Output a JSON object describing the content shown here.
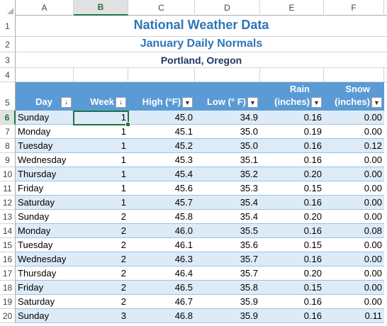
{
  "columns": [
    "A",
    "B",
    "C",
    "D",
    "E",
    "F"
  ],
  "selected_column": "B",
  "rows": [
    "1",
    "2",
    "3",
    "4",
    "5",
    "6",
    "7",
    "8",
    "9",
    "10",
    "11",
    "12",
    "13",
    "14",
    "15",
    "16",
    "17",
    "18",
    "19",
    "20"
  ],
  "selected_row": "6",
  "titles": {
    "main": "National Weather Data",
    "sub": "January Daily Normals",
    "location": "Portland, Oregon"
  },
  "table": {
    "headers": [
      {
        "line1": "",
        "line2": "Day",
        "filter": "sorted"
      },
      {
        "line1": "",
        "line2": "Week",
        "filter": "sorted"
      },
      {
        "line1": "",
        "line2": "High (°F)",
        "filter": "dropdown"
      },
      {
        "line1": "",
        "line2": "Low (° F)",
        "filter": "dropdown"
      },
      {
        "line1": "Rain",
        "line2": "(inches)",
        "filter": "dropdown"
      },
      {
        "line1": "Snow",
        "line2": "(inches)",
        "filter": "dropdown"
      }
    ],
    "rows": [
      [
        "Sunday",
        "1",
        "45.0",
        "34.9",
        "0.16",
        "0.00"
      ],
      [
        "Monday",
        "1",
        "45.1",
        "35.0",
        "0.19",
        "0.00"
      ],
      [
        "Tuesday",
        "1",
        "45.2",
        "35.0",
        "0.16",
        "0.12"
      ],
      [
        "Wednesday",
        "1",
        "45.3",
        "35.1",
        "0.16",
        "0.00"
      ],
      [
        "Thursday",
        "1",
        "45.4",
        "35.2",
        "0.20",
        "0.00"
      ],
      [
        "Friday",
        "1",
        "45.6",
        "35.3",
        "0.15",
        "0.00"
      ],
      [
        "Saturday",
        "1",
        "45.7",
        "35.4",
        "0.16",
        "0.00"
      ],
      [
        "Sunday",
        "2",
        "45.8",
        "35.4",
        "0.20",
        "0.00"
      ],
      [
        "Monday",
        "2",
        "46.0",
        "35.5",
        "0.16",
        "0.08"
      ],
      [
        "Tuesday",
        "2",
        "46.1",
        "35.6",
        "0.15",
        "0.00"
      ],
      [
        "Wednesday",
        "2",
        "46.3",
        "35.7",
        "0.16",
        "0.00"
      ],
      [
        "Thursday",
        "2",
        "46.4",
        "35.7",
        "0.20",
        "0.00"
      ],
      [
        "Friday",
        "2",
        "46.5",
        "35.8",
        "0.15",
        "0.00"
      ],
      [
        "Saturday",
        "2",
        "46.7",
        "35.9",
        "0.16",
        "0.00"
      ],
      [
        "Sunday",
        "3",
        "46.8",
        "35.9",
        "0.16",
        "0.11"
      ]
    ]
  },
  "colors": {
    "accent": "#217346",
    "title": "#2e75b6",
    "header_fill": "#5b9bd5",
    "band_fill": "#ddebf7"
  },
  "icons": {
    "sorted": "sort-filter-icon",
    "dropdown": "filter-dropdown-icon"
  }
}
